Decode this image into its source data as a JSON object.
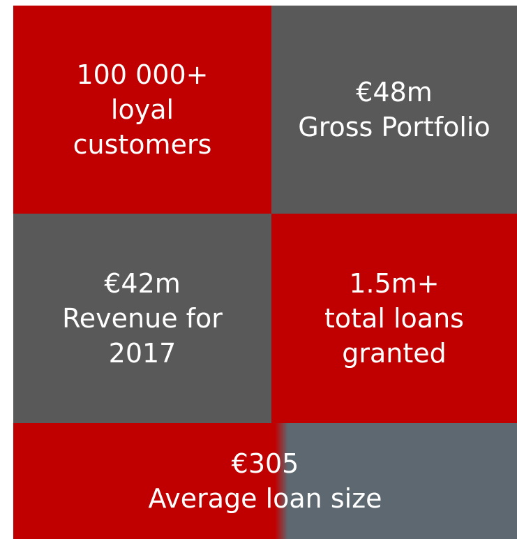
{
  "tiles": [
    {
      "lines": [
        "100 000+",
        "loyal",
        "customers"
      ]
    },
    {
      "lines": [
        "€48m",
        "Gross Portfolio"
      ]
    },
    {
      "lines": [
        "€42m",
        "Revenue for",
        "2017"
      ]
    },
    {
      "lines": [
        "1.5m+",
        "total loans",
        "granted"
      ]
    },
    {
      "lines": [
        "€305",
        "Average loan size"
      ]
    }
  ]
}
